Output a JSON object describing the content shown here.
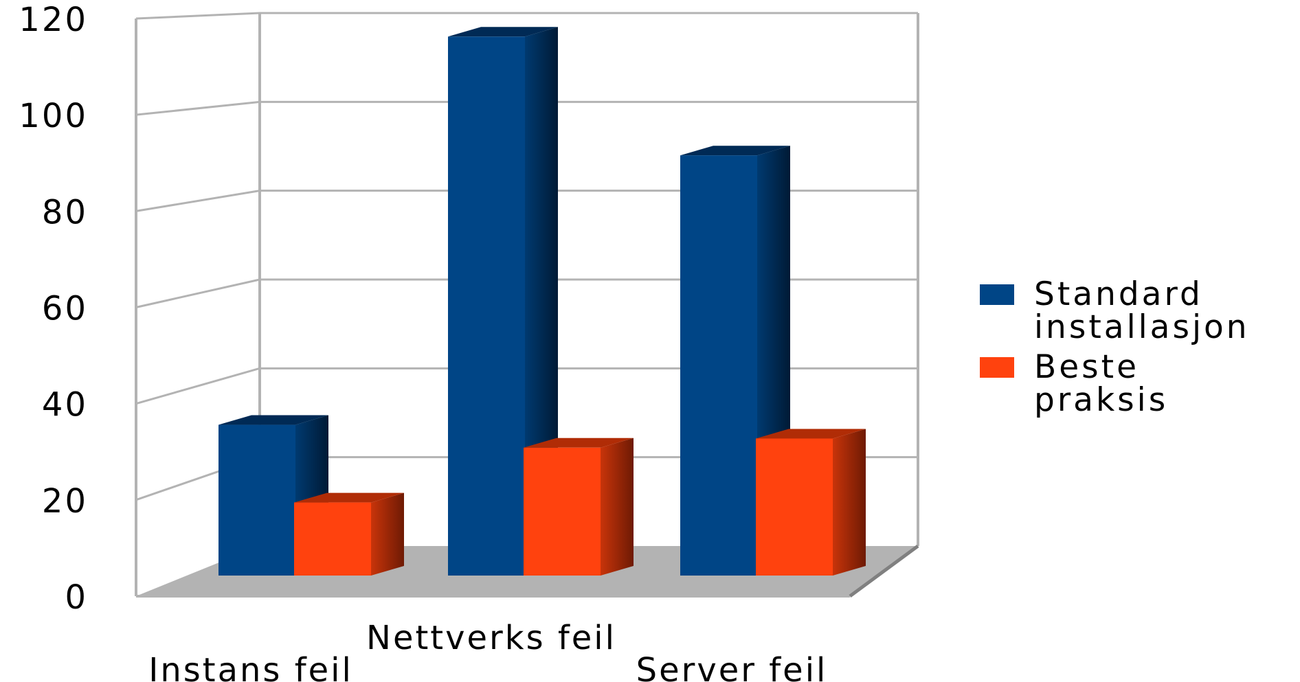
{
  "chart_data": {
    "type": "bar",
    "title": "",
    "xlabel": "",
    "ylabel": "",
    "ylim": [
      0,
      120
    ],
    "yticks": [
      "0",
      "20",
      "40",
      "60",
      "80",
      "100",
      "120"
    ],
    "grid": true,
    "legend_position": "right",
    "categories": [
      "Instans feil",
      "Nettverks feil",
      "Server feil"
    ],
    "series": [
      {
        "name": "Standard installasjon",
        "legend_lines": [
          "Standard",
          "installasjon"
        ],
        "color": "#004586",
        "values": [
          33,
          118,
          92
        ]
      },
      {
        "name": "Beste praksis",
        "legend_lines": [
          "Beste",
          "praksis"
        ],
        "color": "#ff420e",
        "values": [
          16,
          28,
          30
        ]
      }
    ]
  }
}
